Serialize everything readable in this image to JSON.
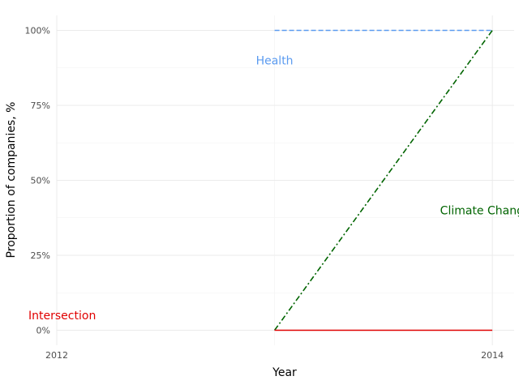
{
  "chart_data": {
    "type": "line",
    "xlabel": "Year",
    "ylabel": "Proportion of companies, %",
    "xlim": [
      2012,
      2014.1
    ],
    "ylim": [
      -0.05,
      1.05
    ],
    "x_ticks": [
      {
        "value": 2012,
        "label": "2012"
      },
      {
        "value": 2014,
        "label": "2014"
      }
    ],
    "y_ticks": [
      {
        "value": 0,
        "label": "0%"
      },
      {
        "value": 0.25,
        "label": "25%"
      },
      {
        "value": 0.5,
        "label": "50%"
      },
      {
        "value": 0.75,
        "label": "75%"
      },
      {
        "value": 1,
        "label": "100%"
      }
    ],
    "grid": true,
    "series": [
      {
        "name": "Health",
        "color": "#5b9bf0",
        "dash": "dashed",
        "x": [
          2013,
          2014
        ],
        "y": [
          1,
          1
        ]
      },
      {
        "name": "Climate Change",
        "color": "#006400",
        "dash": "dashdot",
        "x": [
          2013,
          2014
        ],
        "y": [
          0,
          1
        ]
      },
      {
        "name": "Intersection",
        "color": "#e00000",
        "dash": "solid",
        "x": [
          2013,
          2014
        ],
        "y": [
          0,
          0
        ]
      }
    ],
    "annotations": [
      {
        "text": "Health",
        "x": 2013,
        "y": 0.9,
        "color": "#5b9bf0",
        "anchor": "middle"
      },
      {
        "text": "Climate Change",
        "x": 2013.76,
        "y": 0.4,
        "color": "#006400",
        "anchor": "start"
      },
      {
        "text": "Intersection",
        "x": 2012.18,
        "y": 0.05,
        "color": "#e00000",
        "anchor": "end"
      }
    ]
  }
}
